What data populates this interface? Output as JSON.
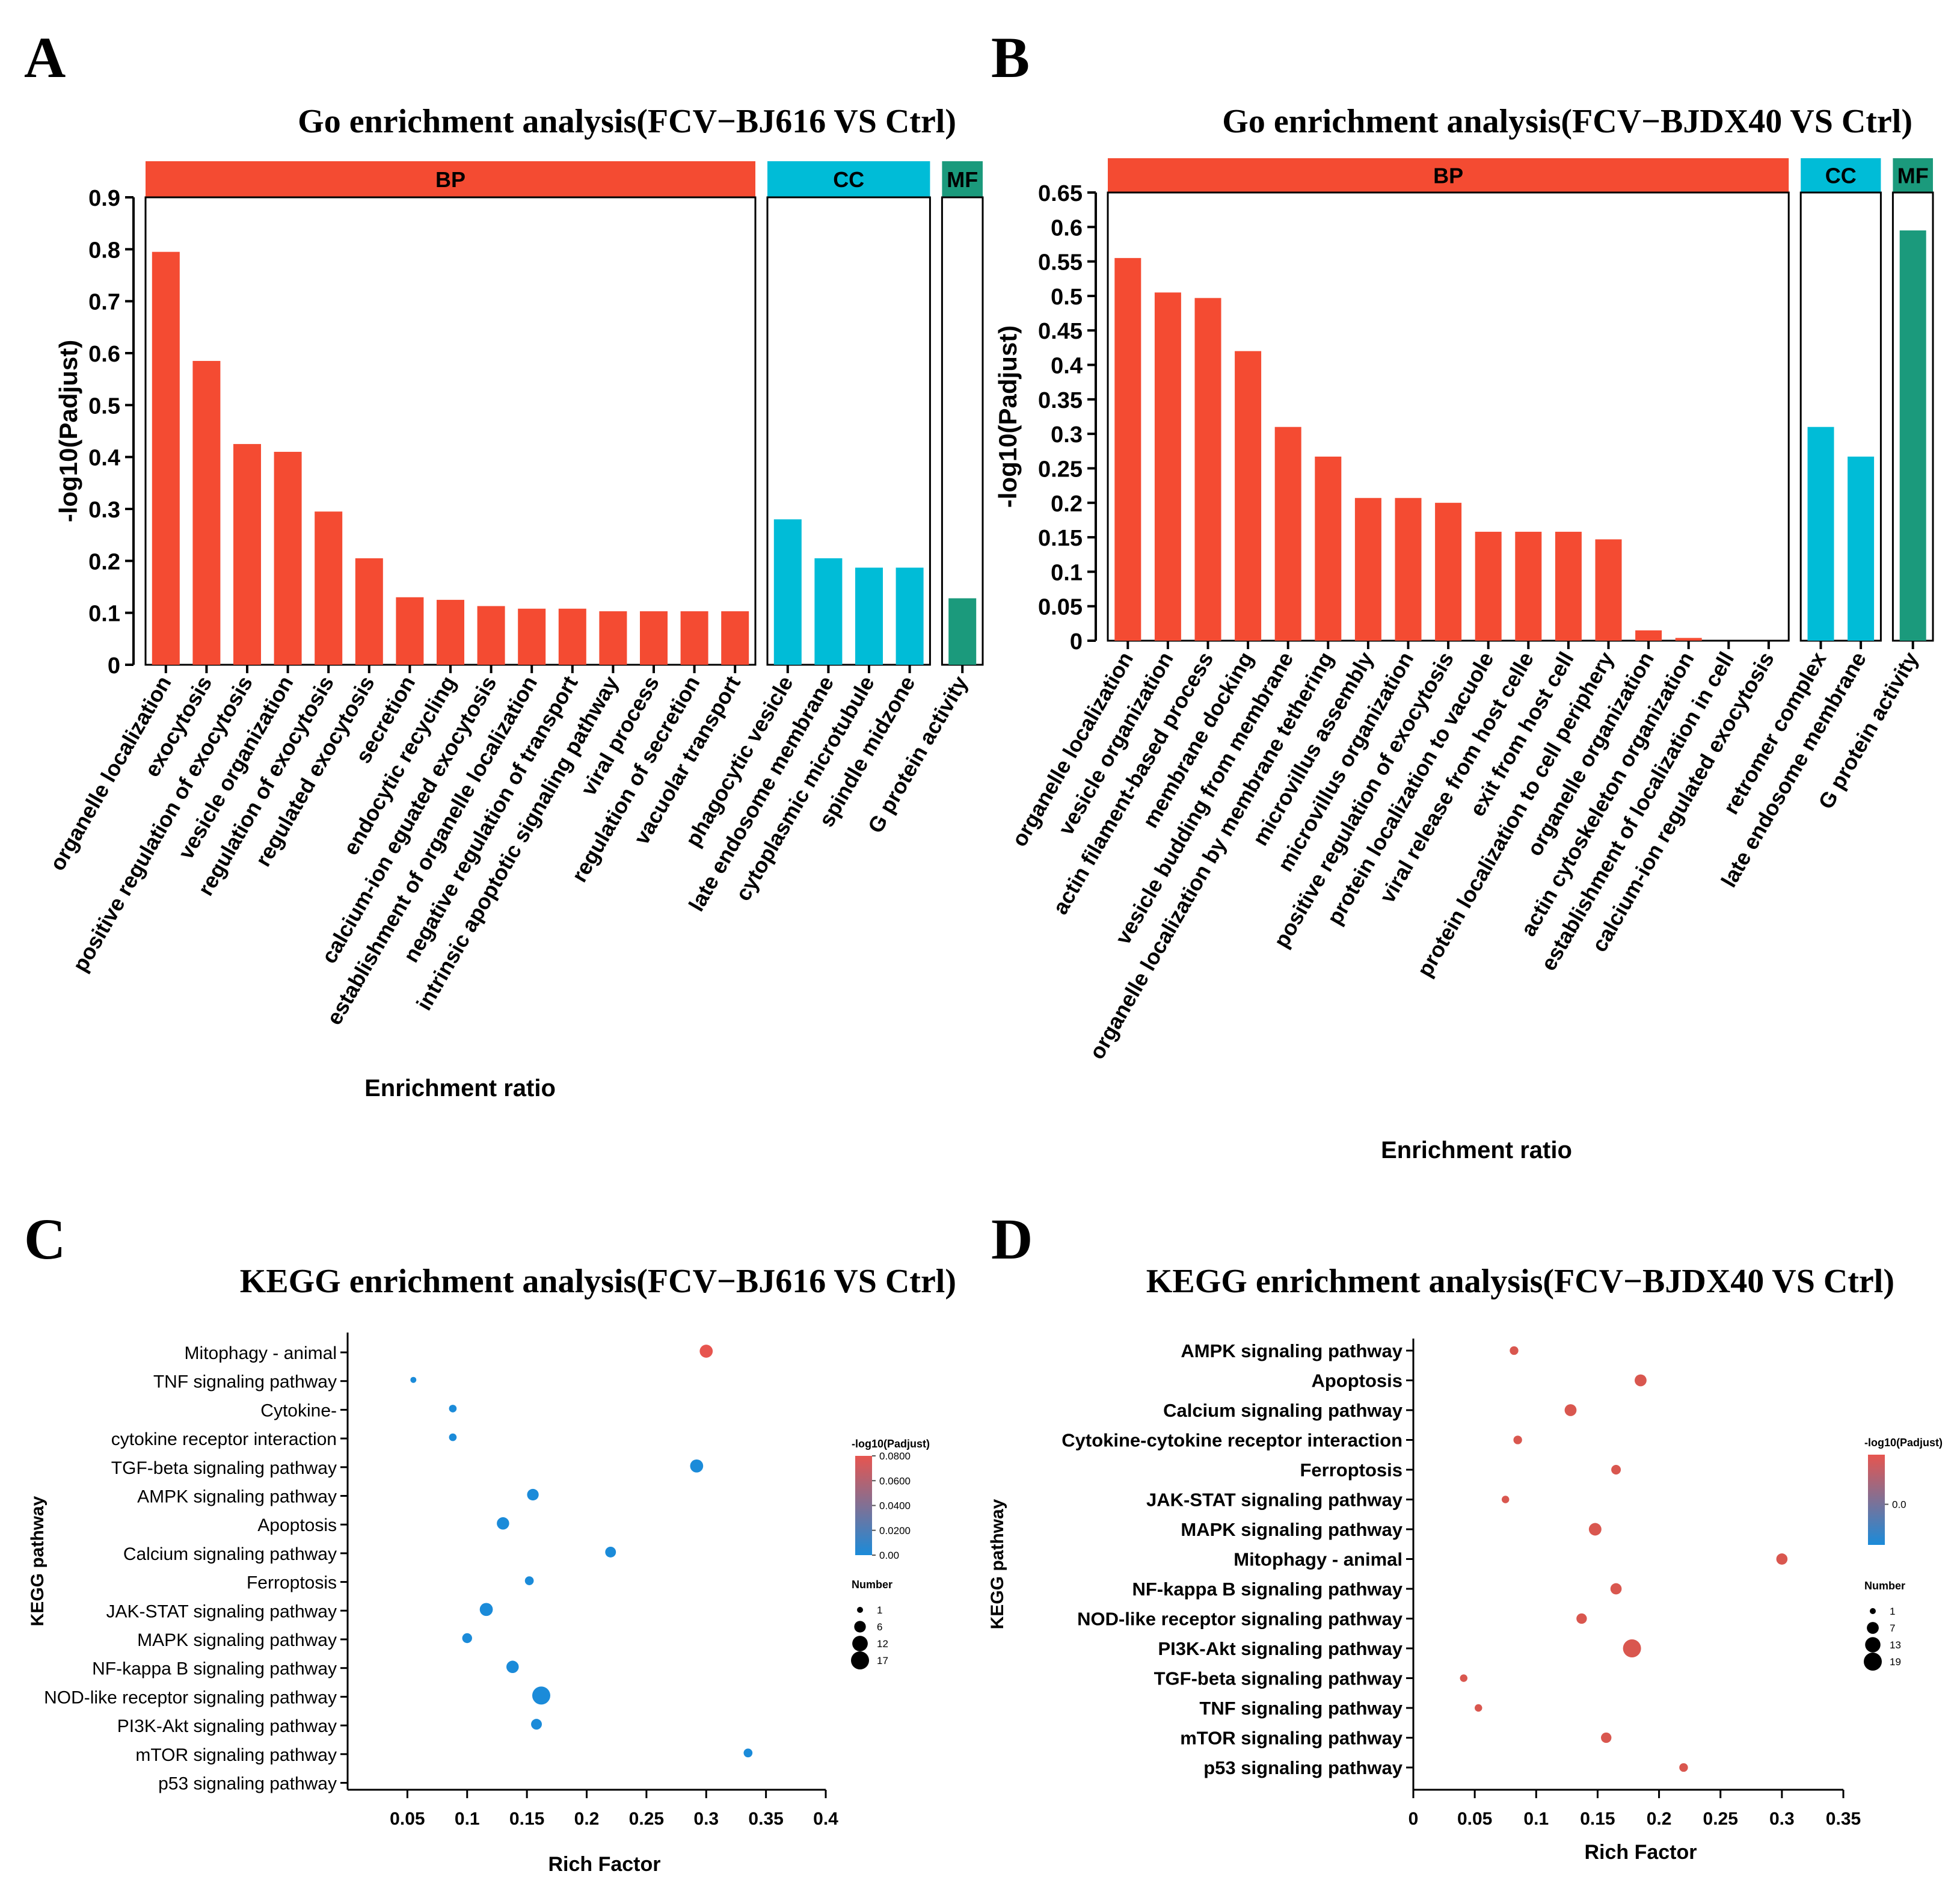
{
  "colors": {
    "bp": "#F44B32",
    "cc": "#00BCD7",
    "mf": "#1B9A7C",
    "kegg_high": "#E7554F",
    "kegg_low": "#1B8BD9",
    "text": "#000000"
  },
  "chart_data": [
    {
      "panel": "A",
      "type": "bar",
      "title": "Go enrichment analysis(FCV−BJ616 VS Ctrl)",
      "xlabel": "Enrichment ratio",
      "ylabel": "-log10(Padjust)",
      "ylim": [
        0,
        0.9
      ],
      "yticks": [
        "0",
        "0.1",
        "0.2",
        "0.3",
        "0.4",
        "0.5",
        "0.6",
        "0.7",
        "0.8",
        "0.9"
      ],
      "facets": [
        {
          "name": "BP",
          "categories": [
            "organelle localization",
            "exocytosis",
            "positive regulation of exocytosis",
            "vesicle organization",
            "regulation of exocytosis",
            "regulated exocytosis",
            "secretion",
            "endocytic recycling",
            "calcium-ion eguated exocytosis",
            "establishment of organelle localization",
            "negative regulation of transport",
            "intrinsic apoptotic signaling pathway",
            "viral process",
            "regulation of secretion",
            "vacuolar transport"
          ],
          "values": [
            0.795,
            0.585,
            0.425,
            0.41,
            0.295,
            0.205,
            0.13,
            0.125,
            0.113,
            0.108,
            0.108,
            0.103,
            0.103,
            0.103,
            0.103
          ]
        },
        {
          "name": "CC",
          "categories": [
            "phagocytic vesicle",
            "late endosome membrane",
            "cytoplasmic microtubule",
            "spindle midzone"
          ],
          "values": [
            0.28,
            0.205,
            0.187,
            0.187
          ]
        },
        {
          "name": "MF",
          "categories": [
            "G protein activity"
          ],
          "values": [
            0.128
          ]
        }
      ]
    },
    {
      "panel": "B",
      "type": "bar",
      "title": "Go enrichment analysis(FCV−BJDX40 VS Ctrl)",
      "xlabel": "Enrichment ratio",
      "ylabel": "-log10(Padjust)",
      "ylim": [
        0,
        0.65
      ],
      "yticks": [
        "0",
        "0.05",
        "0.1",
        "0.15",
        "0.2",
        "0.25",
        "0.3",
        "0.35",
        "0.4",
        "0.45",
        "0.5",
        "0.55",
        "0.6",
        "0.65"
      ],
      "facets": [
        {
          "name": "BP",
          "categories": [
            "organelle localization",
            "vesicle organization",
            "actin filament-based process",
            "membrane docking",
            "vesicle budding from membrane",
            "organelle localization by membrane tethering",
            "microvillus assembly",
            "microvillus organization",
            "positive regulation of exocytosis",
            "protein localization to vacuole",
            "viral release from host celle",
            "exit from host cell",
            "protein localization to cell periphery",
            "organelle organization",
            "actin cytoskeleton organization",
            "establishment of localization in cell",
            "calcium-ion regulated exocytosis"
          ],
          "values": [
            0.555,
            0.505,
            0.497,
            0.42,
            0.31,
            0.267,
            0.207,
            0.207,
            0.2,
            0.158,
            0.158,
            0.158,
            0.147,
            0.015,
            0.004,
            0,
            0
          ]
        },
        {
          "name": "CC",
          "categories": [
            "retromer complex",
            "late endosome membrane"
          ],
          "values": [
            0.31,
            0.267
          ]
        },
        {
          "name": "MF",
          "categories": [
            "G protein activity"
          ],
          "values": [
            0.595
          ]
        }
      ]
    },
    {
      "panel": "C",
      "type": "scatter",
      "title": "KEGG enrichment analysis(FCV−BJ616 VS Ctrl)",
      "xlabel": "Rich Factor",
      "ylabel": "KEGG pathway",
      "xlim": [
        0,
        0.4
      ],
      "xticks": [
        "0.05",
        "0.1",
        "0.15",
        "0.2",
        "0.25",
        "0.3",
        "0.35",
        "0.4"
      ],
      "legend_color_title": "-log10(Padjust)",
      "legend_color_ticks": [
        "0.0800",
        "0.0600",
        "0.0400",
        "0.0200",
        "0.00"
      ],
      "color_range": [
        0,
        0.08
      ],
      "legend_size_title": "Number",
      "legend_size_values": [
        "1",
        "6",
        "12",
        "17"
      ],
      "size_range": [
        1,
        17
      ],
      "points": [
        {
          "label": "Mitophagy - animal",
          "x": 0.3,
          "number": 8,
          "padj": 0.08
        },
        {
          "label": "TNF signaling pathway",
          "x": 0.055,
          "number": 1,
          "padj": 0
        },
        {
          "label": "Cytokine-",
          "x": 0.088,
          "number": 2,
          "padj": 0
        },
        {
          "label": "cytokine receptor interaction",
          "x": 0.088,
          "number": 2,
          "padj": 0
        },
        {
          "label": "TGF-beta signaling pathway",
          "x": 0.292,
          "number": 8,
          "padj": 0
        },
        {
          "label": "AMPK signaling pathway",
          "x": 0.155,
          "number": 6,
          "padj": 0
        },
        {
          "label": "Apoptosis",
          "x": 0.13,
          "number": 7,
          "padj": 0
        },
        {
          "label": "Calcium signaling pathway",
          "x": 0.22,
          "number": 5,
          "padj": 0
        },
        {
          "label": "Ferroptosis",
          "x": 0.152,
          "number": 3,
          "padj": 0
        },
        {
          "label": "JAK-STAT signaling pathway",
          "x": 0.116,
          "number": 8,
          "padj": 0
        },
        {
          "label": "MAPK signaling pathway",
          "x": 0.1,
          "number": 4,
          "padj": 0
        },
        {
          "label": "NF-kappa B signaling pathway",
          "x": 0.138,
          "number": 7,
          "padj": 0
        },
        {
          "label": "NOD-like receptor signaling pathway",
          "x": 0.162,
          "number": 17,
          "padj": 0
        },
        {
          "label": "PI3K-Akt signaling pathway",
          "x": 0.158,
          "number": 5,
          "padj": 0
        },
        {
          "label": "mTOR signaling pathway",
          "x": 0.335,
          "number": 3,
          "padj": 0
        }
      ],
      "extra_labels": [
        "p53 signaling pathway"
      ]
    },
    {
      "panel": "D",
      "type": "scatter",
      "title": "KEGG enrichment analysis(FCV−BJDX40 VS Ctrl)",
      "xlabel": "Rich Factor",
      "ylabel": "KEGG pathway",
      "xlim": [
        0,
        0.35
      ],
      "xticks": [
        "0",
        "0.05",
        "0.1",
        "0.15",
        "0.2",
        "0.25",
        "0.3",
        "0.35"
      ],
      "legend_color_title": "-log10(Padjust)",
      "legend_color_ticks": [
        "0.0"
      ],
      "legend_size_title": "Number",
      "legend_size_values": [
        "1",
        "7",
        "13",
        "19"
      ],
      "size_range": [
        1,
        19
      ],
      "points": [
        {
          "label": "AMPK signaling pathway",
          "x": 0.082,
          "number": 3
        },
        {
          "label": "Apoptosis",
          "x": 0.185,
          "number": 7
        },
        {
          "label": "Calcium signaling pathway",
          "x": 0.128,
          "number": 7
        },
        {
          "label": "Cytokine-cytokine receptor interaction",
          "x": 0.085,
          "number": 3
        },
        {
          "label": "Ferroptosis",
          "x": 0.165,
          "number": 4
        },
        {
          "label": "JAK-STAT signaling pathway",
          "x": 0.075,
          "number": 2
        },
        {
          "label": "MAPK signaling pathway",
          "x": 0.148,
          "number": 8
        },
        {
          "label": "Mitophagy - animal",
          "x": 0.3,
          "number": 6
        },
        {
          "label": "NF-kappa B signaling pathway",
          "x": 0.165,
          "number": 6
        },
        {
          "label": "NOD-like receptor signaling pathway",
          "x": 0.137,
          "number": 5
        },
        {
          "label": "PI3K-Akt signaling pathway",
          "x": 0.178,
          "number": 19
        },
        {
          "label": "TGF-beta signaling pathway",
          "x": 0.041,
          "number": 2
        },
        {
          "label": "TNF signaling pathway",
          "x": 0.053,
          "number": 2
        },
        {
          "label": "mTOR signaling pathway",
          "x": 0.157,
          "number": 5
        },
        {
          "label": "p53 signaling pathway",
          "x": 0.22,
          "number": 3
        }
      ]
    }
  ]
}
